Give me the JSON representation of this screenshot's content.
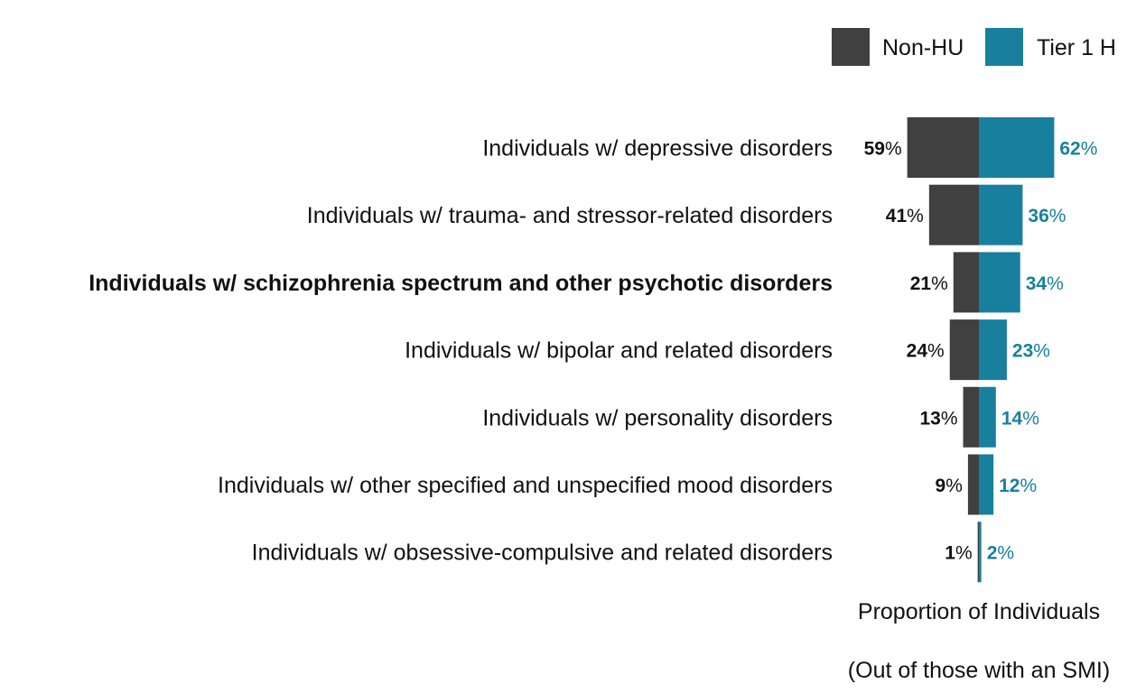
{
  "chart_data": {
    "type": "bar",
    "orientation": "horizontal-diverging",
    "categories": [
      "Individuals w/ depressive disorders",
      "Individuals w/ trauma- and stressor-related disorders",
      "Individuals w/ schizophrenia spectrum and other psychotic disorders",
      "Individuals w/ bipolar and related disorders",
      "Individuals w/ personality disorders",
      "Individuals w/ other specified and unspecified mood disorders",
      "Individuals w/ obsessive-compulsive and related disorders"
    ],
    "highlighted_category": "Individuals w/ schizophrenia spectrum and other psychotic disorders",
    "series": [
      {
        "name": "Non-HU",
        "color": "#404040",
        "direction": "left",
        "values": [
          59,
          41,
          21,
          24,
          13,
          9,
          1
        ]
      },
      {
        "name": "Tier 1 H",
        "color": "#18809e",
        "direction": "right",
        "values": [
          62,
          36,
          34,
          23,
          14,
          12,
          2
        ]
      }
    ],
    "value_suffix": "%",
    "xlabel_lines": [
      "Proportion of Individuals",
      "(Out of those with an SMI)"
    ],
    "legend_position": "top-right",
    "grid": false
  }
}
